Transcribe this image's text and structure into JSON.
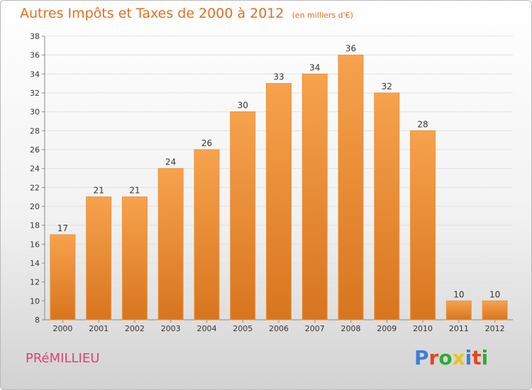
{
  "title": "Autres Impôts et Taxes de 2000 à 2012",
  "subtitle": "(en milliers d'€)",
  "commune": "PRéMILLIEU",
  "logo": {
    "text": "Proxiti",
    "letters": [
      "P",
      "r",
      "o",
      "x",
      "i",
      "t",
      "i"
    ],
    "colors": [
      "#3b7fd4",
      "#e8451e",
      "#2faa3a",
      "#e8c41e",
      "#3b7fd4",
      "#e8451e",
      "#2faa3a"
    ]
  },
  "colors": {
    "accent": "#e07020",
    "commune": "#e0407a",
    "bar_light": "#f7a24e",
    "bar_dark": "#d8751e"
  },
  "chart_data": {
    "type": "bar",
    "categories": [
      "2000",
      "2001",
      "2002",
      "2003",
      "2004",
      "2005",
      "2006",
      "2007",
      "2008",
      "2009",
      "2010",
      "2011",
      "2012"
    ],
    "values": [
      17,
      21,
      21,
      24,
      26,
      30,
      33,
      34,
      36,
      32,
      28,
      10,
      10
    ],
    "data_labels": [
      "17",
      "21",
      "21",
      "24",
      "26",
      "30",
      "33",
      "34",
      "36",
      "32",
      "28",
      "10",
      "10"
    ],
    "ylim": [
      8,
      38
    ],
    "yticks": [
      8,
      10,
      12,
      14,
      16,
      18,
      20,
      22,
      24,
      26,
      28,
      30,
      32,
      34,
      36,
      38
    ],
    "ytick_labels": [
      "8",
      "10",
      "12",
      "14",
      "16",
      "18",
      "20",
      "22",
      "24",
      "26",
      "28",
      "30",
      "32",
      "34",
      "36",
      "38"
    ],
    "grid": true
  }
}
